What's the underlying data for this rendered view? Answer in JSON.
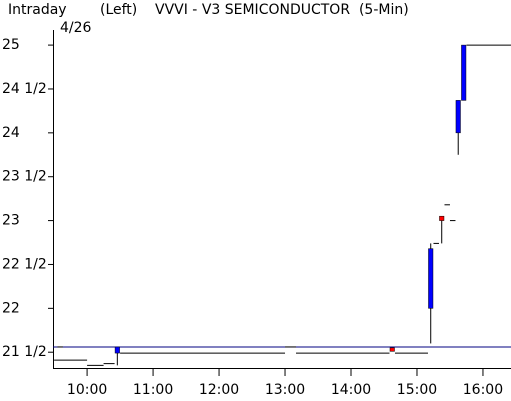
{
  "chart_data": {
    "type": "candlestick",
    "label": "Intraday",
    "date": "4/26",
    "axis_side": "(Left)",
    "title": "VVVI - V3 SEMICONDUCTOR  (5-Min)",
    "xlim": [
      569,
      985.5
    ],
    "ylim": [
      21.32,
      25.4
    ],
    "xticks": [
      {
        "value": 600,
        "label": "10:00"
      },
      {
        "value": 660,
        "label": "11:00"
      },
      {
        "value": 720,
        "label": "12:00"
      },
      {
        "value": 780,
        "label": "13:00"
      },
      {
        "value": 840,
        "label": "14:00"
      },
      {
        "value": 900,
        "label": "15:00"
      },
      {
        "value": 960,
        "label": "16:00"
      }
    ],
    "yticks": [
      {
        "value": 21.5,
        "label": "21 1/2"
      },
      22,
      {
        "value": 22.5,
        "label": "22 1/2"
      },
      23,
      {
        "value": 23.5,
        "label": "23 1/2"
      },
      24,
      {
        "value": 24.5,
        "label": "24 1/2"
      },
      25
    ],
    "reference_line": 21.56,
    "up_color": "#0000ff",
    "down_color": "#ff0000",
    "candles": [
      {
        "time": 625,
        "open": 21.49,
        "high": 21.56,
        "low": 21.35,
        "close": 21.56
      },
      {
        "time": 875,
        "open": 21.55,
        "high": 21.55,
        "low": 21.51,
        "close": 21.51
      },
      {
        "time": 910,
        "open": 22.0,
        "high": 22.74,
        "low": 21.6,
        "close": 22.68
      },
      {
        "time": 920,
        "open": 23.05,
        "high": 23.05,
        "low": 22.74,
        "close": 23.0
      },
      {
        "time": 935,
        "open": 24.0,
        "high": 24.37,
        "low": 23.75,
        "close": 24.37
      },
      {
        "time": 940,
        "open": 24.37,
        "high": 25.0,
        "low": 24.37,
        "close": 25.0
      }
    ],
    "flats": [
      {
        "start": 573,
        "end": 578,
        "price": 21.56
      },
      {
        "start": 570,
        "end": 600,
        "price": 21.41
      },
      {
        "start": 600,
        "end": 615,
        "price": 21.35
      },
      {
        "start": 615,
        "end": 625,
        "price": 21.37
      },
      {
        "start": 630,
        "end": 780,
        "price": 21.49
      },
      {
        "start": 780,
        "end": 790,
        "price": 21.56
      },
      {
        "start": 790,
        "end": 875,
        "price": 21.49
      },
      {
        "start": 880,
        "end": 910,
        "price": 21.49
      },
      {
        "start": 915,
        "end": 920,
        "price": 22.74
      },
      {
        "start": 925,
        "end": 930,
        "price": 23.18
      },
      {
        "start": 930,
        "end": 935,
        "price": 23.0
      },
      {
        "start": 945,
        "end": 985.5,
        "price": 25.0
      }
    ]
  }
}
